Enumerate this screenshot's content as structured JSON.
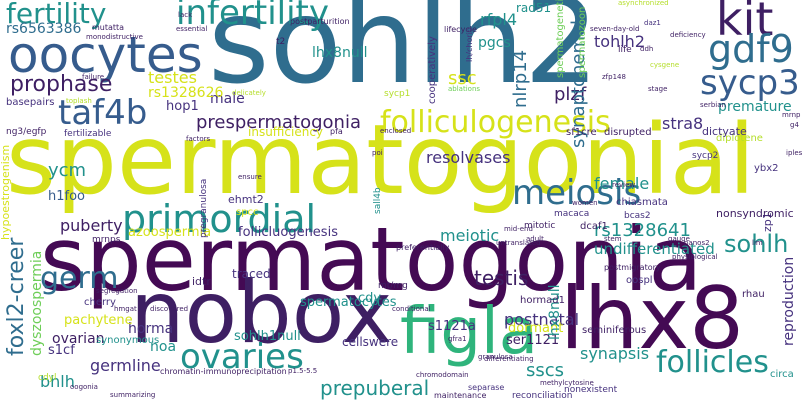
{
  "words": {
    "sohlh2": "sohlh2",
    "spermatogonial": "spermatogonial",
    "spermatogonia": "spermatogonia",
    "nobox": "nobox",
    "lhx8": "lhx8",
    "figla": "figla",
    "oocytes": "oocytes",
    "kit": "kit",
    "gdf9": "gdf9",
    "sycp3": "sycp3",
    "infertility": "infertility",
    "fertility": "fertility",
    "taf4b": "taf4b",
    "prophase": "prophase",
    "primordial": "primordial",
    "folliculogenesis": "folliculogenesis",
    "meiosis": "meiosis",
    "ovaries": "ovaries",
    "follicles": "follicles",
    "germ": "germ",
    "sohlh": "sohlh",
    "testis": "testis",
    "prespermatogonia": "prespermatogonia",
    "testes": "testes",
    "male": "male",
    "ssc": "ssc",
    "rs1328626": "rs1328626",
    "rs1328641": "rs1328641",
    "ycm": "ycm",
    "meiotic": "meiotic",
    "female": "female",
    "plzf": "plzf",
    "nlrp14": "nlrp14",
    "lhx8null": "lhx8null",
    "rfpl4": "rfpl4",
    "tohlh2": "tohlh2",
    "stra8": "stra8",
    "rs6563386": "rs6563386",
    "pgcs": "pgcs",
    "synaptonemal": "synaptonemal",
    "hop1": "hop1",
    "premature": "premature",
    "puberty": "puberty",
    "azoospermia": "azoospermia",
    "follicluogenesis": "follicluogenesis",
    "undifferentiated": "undifferentiated",
    "foxl2_creer": "foxl2-creer",
    "h1foo": "h1foo",
    "dyszoospermia": "dyszoospermia",
    "ovarian": "ovarian",
    "horma": "horma",
    "spermatocytes": "spermatocytes",
    "postnatal": "postnatal",
    "reproduction": "reproduction",
    "pachytene": "pachytene",
    "sohlh1null": "sohlh1null",
    "ser1121": "ser1121",
    "s1121a": "s1121a",
    "s1cf": "s1cf",
    "noa": "noa",
    "bhlh": "bhlh",
    "germline": "germline",
    "prepuberal": "prepuberal",
    "sscs": "sscs",
    "synapsis": "synapsis",
    "cellswere": "cellswere",
    "dormant": "dormant",
    "resolvases": "resolvases",
    "insufficiency": "insufficiency",
    "basepairs": "basepairs",
    "fertilizable": "fertilizable",
    "ng3_egfp": "ng3/egfp",
    "mrnps": "mrnps",
    "cdy": "cdy",
    "traced": "traced",
    "idtr": "idtr",
    "ehmt2": "ehmt2",
    "spcc": "spcc",
    "synonymous": "synonymous",
    "cherry": "cherry",
    "seminiferous": "seminiferous",
    "hormad1": "hormad1",
    "mt_mg": "mt/mg",
    "nonsyndromic": "nonsyndromic",
    "oospl": "oospl",
    "rhau": "rhau",
    "postmigratory": "postmigratory",
    "macaca": "macaca",
    "dcaf1": "dcaf1",
    "chiasmata": "chiasmata",
    "bcas2": "bcas2",
    "mitotic": "mitotic",
    "diplotene": "diplotene",
    "dictyate": "dictyate",
    "sf1cre": "sf1cre",
    "disrupted": "disrupted",
    "sycp2": "sycp2",
    "ybx2": "ybx2",
    "sycp1": "sycp1",
    "rad51": "rad51",
    "spermatogenetic": "spermatogenetic",
    "spermatozoon": "spermatozoon",
    "lifecycle": "lifecycle",
    "mutatta": "mutatta",
    "monodistructive": "monodistructive",
    "essential": "essential",
    "lack": "lack",
    "postparturition": "postparturition",
    "asynchronized": "asynchronized",
    "deficiency": "deficiency",
    "daz1": "daz1",
    "life": "life",
    "cooperatively": "cooperatively",
    "sall4b": "sall4b",
    "circa": "circa",
    "nonexistent": "nonexistent",
    "reconciliation": "reconciliation",
    "separase": "separase",
    "maintenance": "maintenance",
    "summarizing": "summarizing",
    "methylcytosine": "methylcytosine",
    "granulosa": "granulosa",
    "cdyl": "cdyl",
    "oogonia": "oogonia",
    "chromatin": "chromatin-immunoprecipitation",
    "p1_5": "p1.5-5.5",
    "chromodomain": "chromodomain",
    "gfra1": "gfra1",
    "physiological": "physiological",
    "nanos2": "nanos2",
    "lim": "lim",
    "zp1": "zp1",
    "serbian": "serbian",
    "stage": "stage",
    "enclosed": "enclosed",
    "pfa": "pfa",
    "poi": "poi",
    "ensure": "ensure",
    "pregranulosa": "pregranulosa",
    "factors": "factors",
    "failure": "failure",
    "segregation": "segregation",
    "hmgat": "hmgat",
    "discovered": "discovered",
    "conditional": "conditional",
    "preferentially": "preferentially",
    "untranslated": "untranslated",
    "mid_end": "mid-end",
    "women": "women",
    "adult": "adult",
    "review": "review",
    "gauge": "gauge",
    "stem": "stem",
    "differentiating": "differentiating",
    "hypoestrogenism": "hypoestrogenism",
    "mrnp": "mrnp",
    "ablations": "ablations",
    "seven_day": "seven-day-old",
    "lh_chorio": "lh/chorio",
    "t2": "t2",
    "ddh": "ddh",
    "zfp148": "zfp148",
    "g4": "g4",
    "cysgene": "cysgene",
    "toplash": "toplash",
    "delicately": "delicately",
    "iples": "iples"
  }
}
